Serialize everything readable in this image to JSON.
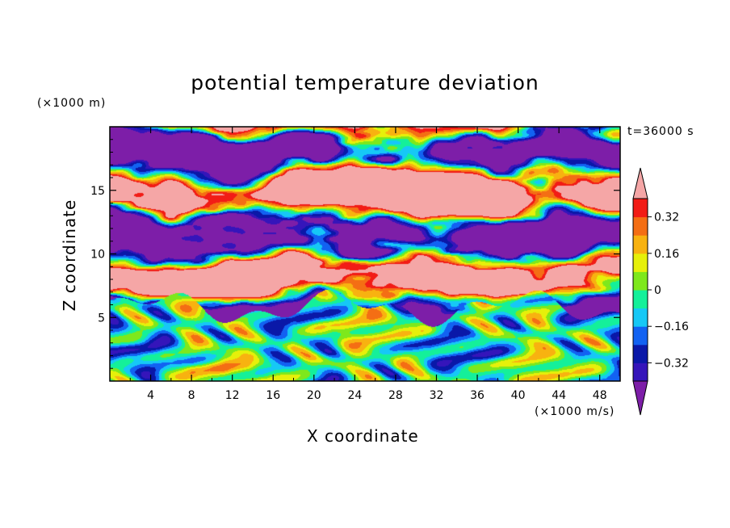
{
  "chart_data": {
    "type": "heatmap",
    "title": "potential temperature deviation",
    "xlabel": "X coordinate",
    "ylabel": "Z coordinate",
    "x_unit": "(×1000 m/s)",
    "z_unit": "(×1000 m)",
    "time_label": "t=36000 s",
    "xlim": [
      0,
      50
    ],
    "ylim": [
      0,
      20
    ],
    "x_ticks": [
      4,
      8,
      12,
      16,
      20,
      24,
      28,
      32,
      36,
      40,
      44,
      48
    ],
    "y_ticks": [
      5,
      10,
      15
    ],
    "colorbar": {
      "levels": [
        -0.4,
        -0.32,
        -0.24,
        -0.16,
        -0.08,
        0,
        0.08,
        0.16,
        0.24,
        0.32,
        0.4
      ],
      "tick_labels": [
        "−0.32",
        "−0.16",
        "0",
        "0.16",
        "0.32"
      ],
      "tick_values": [
        -0.32,
        -0.16,
        0,
        0.16,
        0.32
      ],
      "colors": [
        "#7d1ea8",
        "#3515ba",
        "#0a18a8",
        "#1262f2",
        "#16c8f6",
        "#14f09a",
        "#7ee81c",
        "#e6f00a",
        "#f8b210",
        "#f46e14",
        "#f21c16",
        "#f5a6a6"
      ],
      "extend": "both"
    }
  }
}
